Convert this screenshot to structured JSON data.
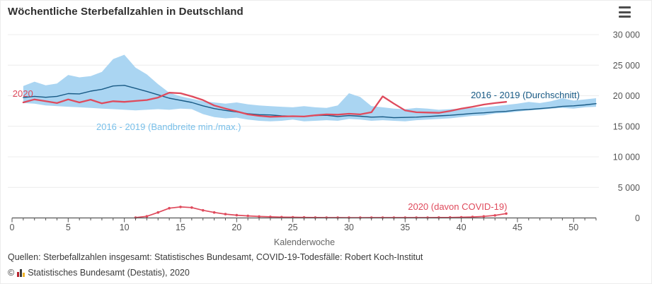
{
  "header": {
    "title": "Wöchentliche Sterbefallzahlen in Deutschland",
    "menu_icon": "hamburger-icon"
  },
  "chart_data": {
    "type": "line",
    "title": "Wöchentliche Sterbefallzahlen in Deutschland",
    "xlabel": "Kalenderwoche",
    "xlim": [
      0,
      52
    ],
    "ylim": [
      0,
      30000
    ],
    "x_ticks": [
      0,
      5,
      10,
      15,
      20,
      25,
      30,
      35,
      40,
      45,
      50
    ],
    "x_minor_step": 1,
    "y_ticks": [
      0,
      5000,
      10000,
      15000,
      20000,
      25000,
      30000
    ],
    "y_tick_labels": [
      "0",
      "5 000",
      "10 000",
      "15 000",
      "20 000",
      "25 000",
      "30 000"
    ],
    "grid": "horizontal",
    "legend_position": "inline-labels",
    "colors": {
      "red_2020": "#df4a5c",
      "avg_blue": "#185a85",
      "band_blue": "#aad5f2",
      "band_label_blue": "#79c0ea"
    },
    "series": [
      {
        "name": "2016 - 2019 (Bandbreite min./max.)",
        "type": "band",
        "color": "#aad5f2",
        "start_week": 1,
        "max": [
          21600,
          22300,
          21700,
          22000,
          23400,
          23000,
          23200,
          23900,
          26000,
          26700,
          24600,
          23500,
          21900,
          20500,
          19900,
          19500,
          19100,
          18900,
          18700,
          18900,
          18600,
          18400,
          18300,
          18200,
          18100,
          18300,
          18100,
          18000,
          18400,
          20400,
          19800,
          18300,
          18100,
          17900,
          17800,
          18000,
          17900,
          17700,
          17800,
          17900,
          18000,
          18100,
          18300,
          18500,
          18700,
          19000,
          18800,
          19100,
          19600,
          19200,
          19400,
          19600
        ],
        "min": [
          18800,
          18700,
          18400,
          18300,
          18200,
          18100,
          18000,
          17900,
          17800,
          17700,
          17600,
          17700,
          17800,
          17700,
          17900,
          17800,
          17000,
          16500,
          16300,
          16400,
          16100,
          15900,
          15800,
          15900,
          16100,
          15800,
          15900,
          16000,
          15900,
          16200,
          16100,
          15900,
          16000,
          15900,
          15800,
          16000,
          16100,
          16200,
          16300,
          16500,
          16700,
          16800,
          17100,
          17200,
          17400,
          17600,
          17700,
          17900,
          18000,
          17900,
          18100,
          18200
        ]
      },
      {
        "name": "2016 - 2019 (Durchschnitt)",
        "type": "line",
        "color": "#185a85",
        "start_week": 1,
        "values": [
          19700,
          19900,
          19750,
          19900,
          20350,
          20300,
          20750,
          21050,
          21600,
          21700,
          21200,
          20700,
          20150,
          19600,
          19250,
          18900,
          18350,
          17900,
          17600,
          17350,
          17050,
          16900,
          16850,
          16700,
          16650,
          16600,
          16750,
          16800,
          16600,
          16750,
          16650,
          16500,
          16550,
          16400,
          16450,
          16500,
          16600,
          16700,
          16800,
          16950,
          17100,
          17200,
          17350,
          17450,
          17650,
          17750,
          17900,
          18050,
          18250,
          18350,
          18500,
          18700
        ]
      },
      {
        "name": "2020",
        "type": "line",
        "color": "#df4a5c",
        "start_week": 1,
        "values": [
          18900,
          19400,
          19100,
          18800,
          19400,
          18900,
          19350,
          18750,
          19100,
          19000,
          19150,
          19300,
          19700,
          20500,
          20400,
          19900,
          19300,
          18400,
          17900,
          17450,
          16950,
          16700,
          16550,
          16600,
          16650,
          16600,
          16800,
          16950,
          16900,
          17050,
          16950,
          17300,
          19900,
          18700,
          17600,
          17300,
          17250,
          17200,
          17500,
          17900,
          18200,
          18550,
          18800,
          19000
        ]
      },
      {
        "name": "2020 (davon COVID-19)",
        "type": "line-markers",
        "color": "#df4a5c",
        "start_week": 11,
        "values": [
          60,
          270,
          900,
          1600,
          1800,
          1700,
          1250,
          900,
          620,
          450,
          330,
          240,
          180,
          140,
          110,
          90,
          70,
          60,
          55,
          50,
          50,
          55,
          60,
          60,
          55,
          55,
          60,
          70,
          85,
          110,
          160,
          250,
          420,
          720
        ]
      }
    ],
    "labels": [
      {
        "text": "2020",
        "week": 0.05,
        "value": 19800,
        "color": "#df4a5c",
        "name": "series-label-2020"
      },
      {
        "text": "2016 - 2019 (Bandbreite min./max.)",
        "week": 7.5,
        "value": 14400,
        "color": "#79c0ea",
        "name": "series-label-band"
      },
      {
        "text": "2016 - 2019 (Durchschnitt)",
        "week": 40.85,
        "value": 19600,
        "color": "#185a85",
        "name": "series-label-avg"
      },
      {
        "text": "2020 (davon COVID-19)",
        "week": 35.25,
        "value": 1330,
        "color": "#df4a5c",
        "name": "series-label-covid"
      }
    ]
  },
  "footer": {
    "sources": "Quellen: Sterbefallzahlen insgesamt: Statistisches Bundesamt, COVID-19-Todesfälle: Robert Koch-Institut",
    "copyright_prefix": "©",
    "copyright_text": "Statistisches Bundesamt (Destatis), 2020"
  }
}
